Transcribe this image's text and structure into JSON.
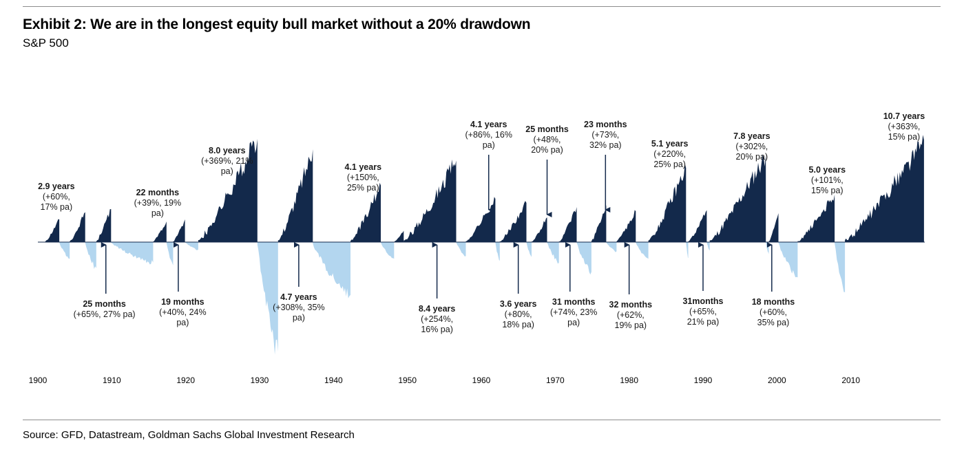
{
  "title": "Exhibit 2: We are in the longest equity bull market without a 20% drawdown",
  "subtitle": "S&P 500",
  "source": "Source: GFD, Datastream, Goldman Sachs Global Investment Research",
  "colors": {
    "bull": "#13294b",
    "drawdown": "#b3d6ef",
    "arrow": "#13294b",
    "rule": "#8c8c8c"
  },
  "chart_data": {
    "type": "area",
    "x_ticks": [
      "1900",
      "1910",
      "1920",
      "1930",
      "1940",
      "1950",
      "1960",
      "1970",
      "1980",
      "1990",
      "2000",
      "2010"
    ],
    "series": [
      {
        "values": [
          {
            "start": 1901.0,
            "end": 1902.9,
            "peak": 22,
            "dir": 1
          },
          {
            "start": 1902.9,
            "end": 1904.3,
            "peak": 18,
            "dir": -1
          },
          {
            "start": 1904.3,
            "end": 1906.4,
            "peak": 29,
            "dir": 1
          },
          {
            "start": 1906.4,
            "end": 1907.9,
            "peak": 28,
            "dir": -1
          },
          {
            "start": 1907.9,
            "end": 1909.9,
            "peak": 32,
            "dir": 1
          },
          {
            "start": 1909.9,
            "end": 1915.6,
            "peak": 22,
            "dir": -1
          },
          {
            "start": 1915.6,
            "end": 1917.4,
            "peak": 20,
            "dir": 1
          },
          {
            "start": 1917.4,
            "end": 1918.3,
            "peak": 25,
            "dir": -1
          },
          {
            "start": 1918.3,
            "end": 1919.9,
            "peak": 22,
            "dir": 1
          },
          {
            "start": 1919.9,
            "end": 1921.7,
            "peak": 8,
            "dir": -1
          },
          {
            "start": 1921.7,
            "end": 1929.7,
            "peak": 100,
            "dir": 1
          },
          {
            "start": 1929.7,
            "end": 1932.5,
            "peak": 118,
            "dir": -1
          },
          {
            "start": 1932.5,
            "end": 1937.2,
            "peak": 90,
            "dir": 1
          },
          {
            "start": 1937.2,
            "end": 1942.3,
            "peak": 57,
            "dir": -1
          },
          {
            "start": 1942.3,
            "end": 1946.4,
            "peak": 55,
            "dir": 1
          },
          {
            "start": 1946.4,
            "end": 1948.2,
            "peak": 18,
            "dir": -1
          },
          {
            "start": 1948.2,
            "end": 1949.5,
            "peak": 11,
            "dir": 1
          },
          {
            "start": 1949.5,
            "end": 1956.6,
            "peak": 79,
            "dir": 1
          },
          {
            "start": 1956.6,
            "end": 1957.9,
            "peak": 15,
            "dir": -1
          },
          {
            "start": 1957.9,
            "end": 1961.9,
            "peak": 42,
            "dir": 1
          },
          {
            "start": 1961.9,
            "end": 1962.5,
            "peak": 20,
            "dir": -1
          },
          {
            "start": 1962.5,
            "end": 1966.1,
            "peak": 38,
            "dir": 1
          },
          {
            "start": 1966.1,
            "end": 1966.8,
            "peak": 16,
            "dir": -1
          },
          {
            "start": 1966.8,
            "end": 1968.9,
            "peak": 24,
            "dir": 1
          },
          {
            "start": 1968.9,
            "end": 1970.5,
            "peak": 22,
            "dir": -1
          },
          {
            "start": 1970.5,
            "end": 1972.9,
            "peak": 34,
            "dir": 1
          },
          {
            "start": 1972.9,
            "end": 1974.9,
            "peak": 32,
            "dir": -1
          },
          {
            "start": 1974.9,
            "end": 1976.9,
            "peak": 36,
            "dir": 1
          },
          {
            "start": 1976.9,
            "end": 1978.3,
            "peak": 10,
            "dir": -1
          },
          {
            "start": 1978.3,
            "end": 1980.9,
            "peak": 30,
            "dir": 1
          },
          {
            "start": 1980.9,
            "end": 1982.6,
            "peak": 18,
            "dir": -1
          },
          {
            "start": 1982.6,
            "end": 1987.7,
            "peak": 72,
            "dir": 1
          },
          {
            "start": 1987.7,
            "end": 1988.0,
            "peak": 17,
            "dir": -1
          },
          {
            "start": 1988.0,
            "end": 1990.5,
            "peak": 31,
            "dir": 1
          },
          {
            "start": 1990.5,
            "end": 1990.9,
            "peak": 9,
            "dir": -1
          },
          {
            "start": 1990.9,
            "end": 1998.5,
            "peak": 85,
            "dir": 1
          },
          {
            "start": 1998.5,
            "end": 1998.9,
            "peak": 13,
            "dir": -1
          },
          {
            "start": 1998.9,
            "end": 2000.2,
            "peak": 28,
            "dir": 1
          },
          {
            "start": 2000.2,
            "end": 2002.8,
            "peak": 38,
            "dir": -1
          },
          {
            "start": 2002.8,
            "end": 2007.8,
            "peak": 46,
            "dir": 1
          },
          {
            "start": 2007.8,
            "end": 2009.2,
            "peak": 54,
            "dir": -1
          },
          {
            "start": 2009.2,
            "end": 2019.9,
            "peak": 99,
            "dir": 1
          }
        ]
      }
    ],
    "annotations": [
      {
        "head": "2.9 years",
        "lines": [
          "(+60%,",
          "17% pa)"
        ],
        "pos": "above",
        "year": 1902.5,
        "arrow": false
      },
      {
        "head": "25 months",
        "lines": [
          "(+65%, 27% pa)"
        ],
        "pos": "below",
        "year": 1909.0,
        "arrow": true,
        "arrow_year": 1909.2
      },
      {
        "head": "22 months",
        "lines": [
          "(+39%, 19%",
          "pa)"
        ],
        "pos": "above",
        "year": 1916.2,
        "arrow": false
      },
      {
        "head": "19 months",
        "lines": [
          "(+40%, 24%",
          "pa)"
        ],
        "pos": "below",
        "year": 1919.6,
        "arrow": true,
        "arrow_year": 1919.0
      },
      {
        "head": "8.0 years",
        "lines": [
          "(+369%, 21%",
          "pa)"
        ],
        "pos": "above",
        "year": 1925.6,
        "arrow": false
      },
      {
        "head": "4.7 years",
        "lines": [
          "(+308%, 35%",
          "pa)"
        ],
        "pos": "below",
        "year": 1935.3,
        "arrow": true,
        "arrow_year": 1935.3
      },
      {
        "head": "4.1  years",
        "lines": [
          "(+150%,",
          "25% pa)"
        ],
        "pos": "above",
        "year": 1944.0,
        "arrow": false
      },
      {
        "head": "8.4 years",
        "lines": [
          "(+254%,",
          "16% pa)"
        ],
        "pos": "below",
        "year": 1954.0,
        "arrow": true,
        "arrow_year": 1954.0
      },
      {
        "head": "4.1 years",
        "lines": [
          "(+86%, 16%",
          "pa)"
        ],
        "pos": "above",
        "year": 1961.0,
        "arrow": true,
        "arrow_year": 1961.0
      },
      {
        "head": "3.6 years",
        "lines": [
          "(+80%,",
          "18% pa)"
        ],
        "pos": "below",
        "year": 1965.0,
        "arrow": true,
        "arrow_year": 1965.0
      },
      {
        "head": "25 months",
        "lines": [
          "(+48%,",
          "20% pa)"
        ],
        "pos": "above",
        "year": 1968.9,
        "arrow": true,
        "arrow_year": 1968.9
      },
      {
        "head": "31 months",
        "lines": [
          "(+74%, 23%",
          "pa)"
        ],
        "pos": "below",
        "year": 1972.5,
        "arrow": true,
        "arrow_year": 1972.0
      },
      {
        "head": "23 months",
        "lines": [
          "(+73%,",
          "32% pa)"
        ],
        "pos": "above",
        "year": 1976.8,
        "arrow": true,
        "arrow_year": 1976.8
      },
      {
        "head": "32 months",
        "lines": [
          "(+62%,",
          "19% pa)"
        ],
        "pos": "below",
        "year": 1980.2,
        "arrow": true,
        "arrow_year": 1980.0
      },
      {
        "head": "5.1 years",
        "lines": [
          "(+220%,",
          "25% pa)"
        ],
        "pos": "above",
        "year": 1985.5,
        "arrow": false
      },
      {
        "head": "31months",
        "lines": [
          "(+65%,",
          "21% pa)"
        ],
        "pos": "below",
        "year": 1990.0,
        "arrow": true,
        "arrow_year": 1990.0
      },
      {
        "head": "7.8 years",
        "lines": [
          "(+302%,",
          "20% pa)"
        ],
        "pos": "above",
        "year": 1996.6,
        "arrow": false
      },
      {
        "head": "18 months",
        "lines": [
          "(+60%,",
          "35% pa)"
        ],
        "pos": "below",
        "year": 1999.5,
        "arrow": true,
        "arrow_year": 1999.3
      },
      {
        "head": "5.0 years",
        "lines": [
          "(+101%,",
          "15% pa)"
        ],
        "pos": "above",
        "year": 2006.8,
        "arrow": false
      },
      {
        "head": "10.7 years",
        "lines": [
          "(+363%,",
          "15% pa)"
        ],
        "pos": "above",
        "year": 2017.2,
        "arrow": false
      }
    ]
  }
}
